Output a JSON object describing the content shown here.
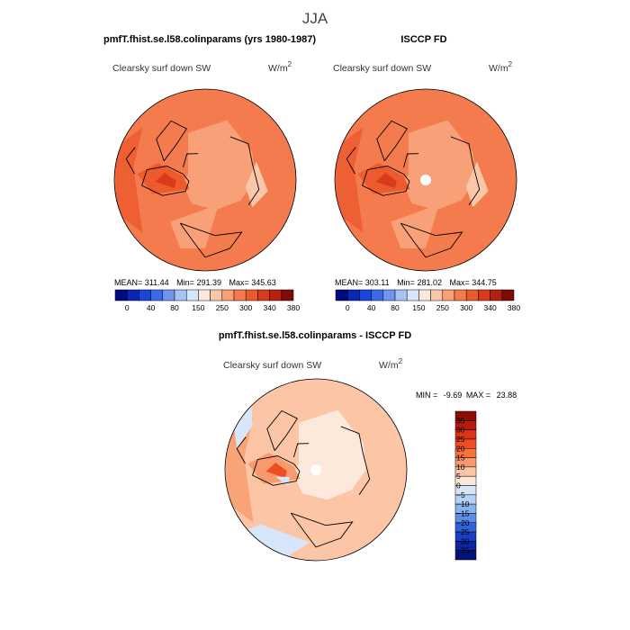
{
  "page": {
    "title": "JJA"
  },
  "chart_data": [
    {
      "type": "heatmap",
      "projection": "north-polar-stereographic",
      "panel_title": "pmfT.fhist.se.l58.colinparams (yrs 1980-1987)",
      "variable": "Clearsky surf down SW",
      "units_base": "W/m",
      "units_exp": "2",
      "stats": {
        "mean": "311.44",
        "min": "291.39",
        "max": "345.63"
      },
      "stats_labels": {
        "mean": "MEAN=",
        "min": "Min=",
        "max": "Max="
      },
      "colorbar": {
        "orientation": "horizontal",
        "levels": [
          "0",
          "40",
          "80",
          "150",
          "250",
          "300",
          "340",
          "380"
        ],
        "colors": [
          "#000c7d",
          "#0a26b5",
          "#1a46dc",
          "#3b6be8",
          "#6f96ee",
          "#a6c4f4",
          "#d6e6fb",
          "#fde8dd",
          "#fbc7ab",
          "#f8a178",
          "#f47b4d",
          "#ec5a2e",
          "#d93a1c",
          "#b52012",
          "#7e0b08"
        ]
      },
      "field_colors": {
        "base": "#f47b4d",
        "darker": "#ec5a2e",
        "darkest": "#d93a1c",
        "lighter": "#f8a178",
        "lightest": "#fbc7ab"
      }
    },
    {
      "type": "heatmap",
      "projection": "north-polar-stereographic",
      "panel_title": "ISCCP FD",
      "variable": "Clearsky surf down SW",
      "units_base": "W/m",
      "units_exp": "2",
      "stats": {
        "mean": "303.11",
        "min": "281.02",
        "max": "344.75"
      },
      "stats_labels": {
        "mean": "MEAN=",
        "min": "Min=",
        "max": "Max="
      },
      "colorbar": {
        "orientation": "horizontal",
        "levels": [
          "0",
          "40",
          "80",
          "150",
          "250",
          "300",
          "340",
          "380"
        ],
        "colors": [
          "#000c7d",
          "#0a26b5",
          "#1a46dc",
          "#3b6be8",
          "#6f96ee",
          "#a6c4f4",
          "#d6e6fb",
          "#fde8dd",
          "#fbc7ab",
          "#f8a178",
          "#f47b4d",
          "#ec5a2e",
          "#d93a1c",
          "#b52012",
          "#7e0b08"
        ]
      },
      "field_colors": {
        "base": "#f47b4d",
        "darker": "#ec5a2e",
        "darkest": "#d93a1c",
        "lighter": "#f8a178",
        "lightest": "#fbc7ab"
      }
    },
    {
      "type": "heatmap",
      "projection": "north-polar-stereographic",
      "panel_title": "pmfT.fhist.se.l58.colinparams - ISCCP FD",
      "variable": "Clearsky surf down SW",
      "units_base": "W/m",
      "units_exp": "2",
      "stats": {
        "min": "-9.69",
        "max": "23.88"
      },
      "stats_labels": {
        "min": "MIN =",
        "max": "MAX ="
      },
      "colorbar": {
        "orientation": "vertical",
        "levels": [
          "35",
          "30",
          "25",
          "20",
          "15",
          "10",
          "5",
          "0",
          "−5",
          "−10",
          "−15",
          "−20",
          "−25",
          "−30",
          "−35"
        ],
        "colors": [
          "#8c0d07",
          "#b51c10",
          "#d93318",
          "#ef4d22",
          "#f8703d",
          "#f99a6e",
          "#fbc5a6",
          "#fde9dc",
          "#d7e6fa",
          "#b3d0f6",
          "#8ab2f0",
          "#5c8ce8",
          "#2f63dc",
          "#1a3fc4",
          "#0d259e",
          "#05127a"
        ]
      },
      "field_colors": {
        "base": "#fbc5a6",
        "darker": "#f99a6e",
        "darkest": "#ef4d22",
        "lighter": "#fde9dc",
        "lightest": "#ffffff",
        "negative": "#d7e6fa"
      }
    }
  ]
}
